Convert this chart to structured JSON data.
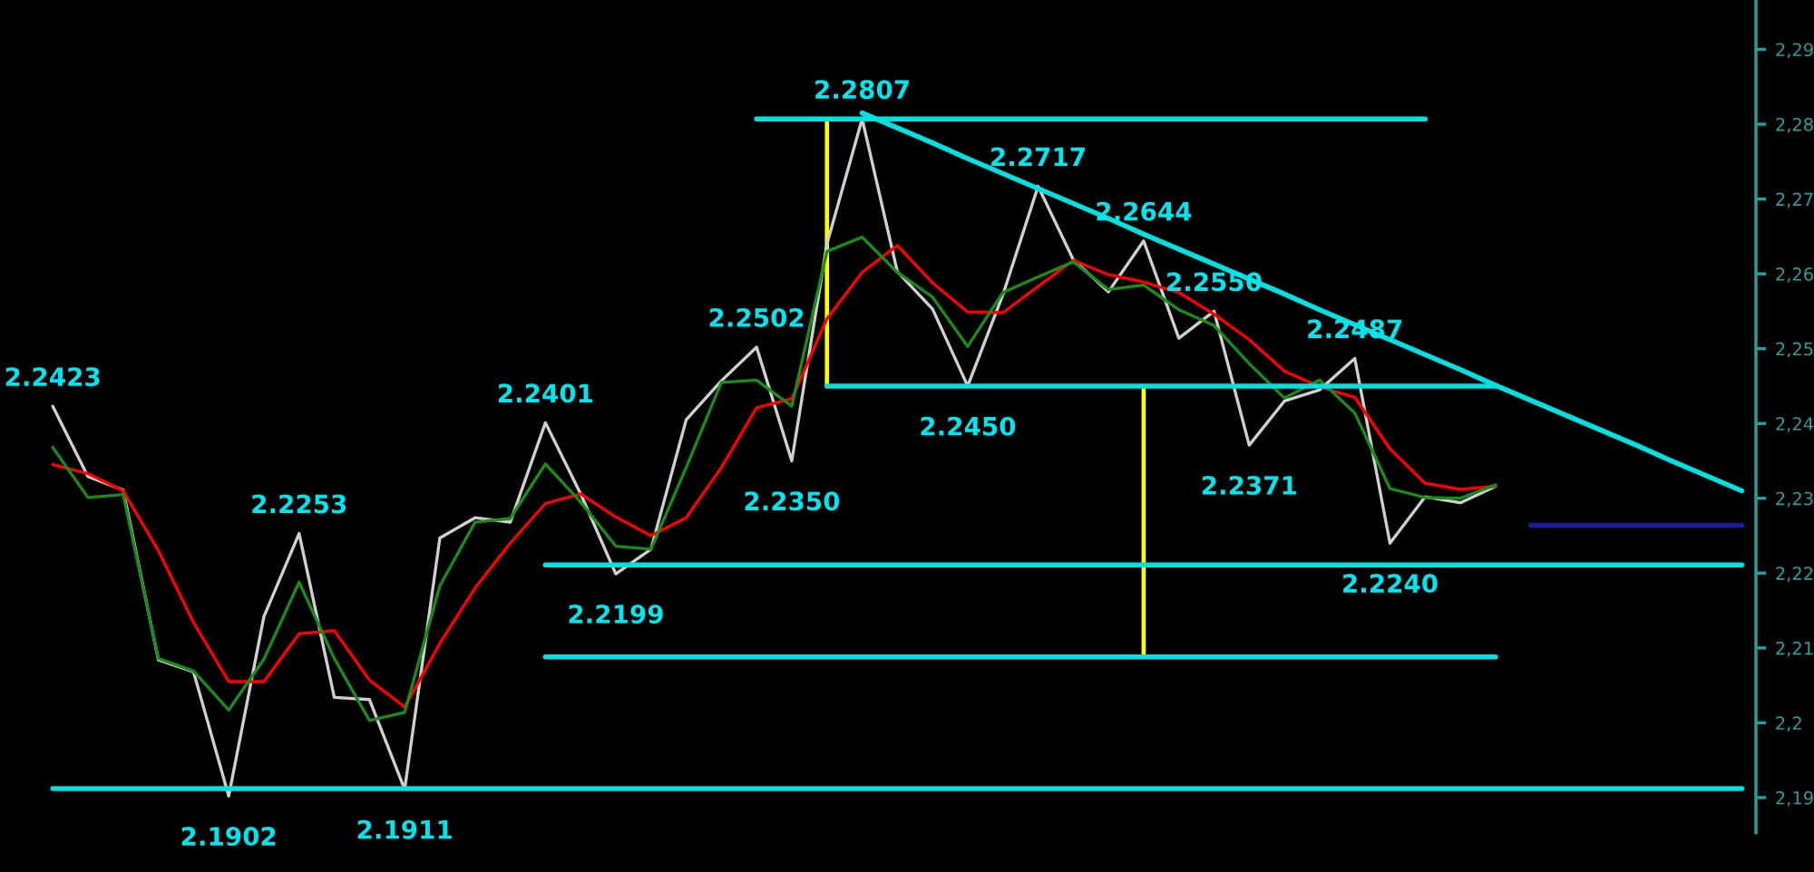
{
  "chart_data": {
    "type": "line",
    "ylim": [
      2.1853,
      2.2966
    ],
    "tick_labels": "y",
    "categories": [
      null,
      null,
      null,
      null,
      null,
      null,
      null,
      null,
      null,
      null,
      null,
      null,
      null,
      null,
      null,
      null,
      null,
      null,
      null,
      null,
      null,
      null,
      null,
      null,
      null,
      null,
      null,
      null,
      null,
      null,
      null,
      null,
      null,
      null,
      null,
      null,
      null,
      null,
      null,
      null,
      null,
      null,
      null,
      null,
      null,
      null,
      null,
      null,
      null
    ],
    "yticks": [
      {
        "value": 2.19,
        "label": "2,19"
      },
      {
        "value": 2.2,
        "label": "2,2"
      },
      {
        "value": 2.21,
        "label": "2,21"
      },
      {
        "value": 2.22,
        "label": "2,22"
      },
      {
        "value": 2.23,
        "label": "2,23"
      },
      {
        "value": 2.24,
        "label": "2,24"
      },
      {
        "value": 2.25,
        "label": "2,25"
      },
      {
        "value": 2.26,
        "label": "2,26"
      },
      {
        "value": 2.27,
        "label": "2,27"
      },
      {
        "value": 2.28,
        "label": "2,28"
      },
      {
        "value": 2.29,
        "label": "2,29"
      }
    ],
    "series": [
      {
        "color": "#d0d0d0",
        "values": [
          2.2423,
          2.2329,
          2.2311,
          2.2084,
          2.2068,
          2.1902,
          2.2142,
          2.2253,
          2.2034,
          2.2031,
          2.1911,
          2.2247,
          2.2274,
          2.2268,
          2.2401,
          2.2306,
          2.2199,
          2.2232,
          2.2405,
          2.2457,
          2.2502,
          2.235,
          2.264,
          2.2807,
          2.2603,
          2.2553,
          2.245,
          2.2572,
          2.2717,
          2.2619,
          2.2576,
          2.2644,
          2.2514,
          2.255,
          2.2371,
          2.243,
          2.2445,
          2.2487,
          2.224,
          2.2302,
          2.2294,
          2.2316,
          null,
          null,
          null,
          null,
          null,
          null,
          null
        ],
        "value_labels": [
          "2.2423",
          null,
          null,
          null,
          null,
          "2.1902",
          null,
          "2.2253",
          null,
          null,
          "2.1911",
          null,
          null,
          null,
          "2.2401",
          null,
          "2.2199",
          null,
          null,
          null,
          "2.2502",
          "2.2350",
          null,
          "2.2807",
          null,
          null,
          "2.2450",
          null,
          "2.2717",
          null,
          null,
          "2.2644",
          null,
          "2.2550",
          "2.2371",
          null,
          null,
          "2.2487",
          "2.2240",
          null,
          null,
          null,
          null,
          null,
          null,
          null,
          null,
          null,
          null
        ]
      },
      {
        "color": "#ff0000",
        "values": [
          2.2345,
          2.2333,
          2.231,
          2.223,
          2.2134,
          2.2055,
          2.2055,
          2.2119,
          2.2123,
          2.2057,
          2.2021,
          2.2106,
          2.218,
          2.224,
          2.2293,
          2.2306,
          2.2275,
          2.225,
          2.2274,
          2.2341,
          2.2421,
          2.2433,
          2.254,
          2.2602,
          2.2638,
          2.2588,
          2.2549,
          2.2548,
          2.2583,
          2.2618,
          2.2599,
          2.2589,
          2.2575,
          2.2546,
          2.2512,
          2.247,
          2.2449,
          2.2435,
          2.2366,
          2.232,
          2.2312,
          2.2316,
          null,
          null,
          null,
          null,
          null,
          null,
          null
        ]
      },
      {
        "color": "#1a8c1a",
        "values": [
          2.2368,
          2.2301,
          2.2305,
          2.2086,
          2.2069,
          2.2017,
          2.2085,
          2.2188,
          2.2086,
          2.2003,
          2.2014,
          2.2183,
          2.2268,
          2.2273,
          2.2346,
          2.2295,
          2.2236,
          2.2232,
          2.2341,
          2.2455,
          2.2458,
          2.2423,
          2.263,
          2.2649,
          2.2602,
          2.2569,
          2.2503,
          2.2575,
          2.2596,
          2.2616,
          2.2579,
          2.2585,
          2.2552,
          2.2531,
          2.248,
          2.2434,
          2.2458,
          2.2414,
          2.2313,
          2.2301,
          2.23,
          2.2318,
          null,
          null,
          null,
          null,
          null,
          null,
          null
        ]
      },
      {
        "color": "#00e0e0",
        "values": [
          null,
          null,
          null,
          null,
          null,
          null,
          null,
          null,
          null,
          null,
          null,
          null,
          null,
          null,
          null,
          null,
          null,
          null,
          null,
          null,
          2.2807,
          2.2807,
          2.2807,
          2.2807,
          2.2807,
          2.2807,
          2.2807,
          2.2807,
          2.2807,
          2.2807,
          2.2807,
          2.2807,
          2.2807,
          2.2807,
          2.2807,
          2.2807,
          2.2807,
          2.2807,
          2.2807,
          2.2807,
          null,
          null,
          null,
          null,
          null,
          null,
          null,
          null,
          null
        ]
      },
      {
        "color": "#00e0e0",
        "values": [
          null,
          null,
          null,
          null,
          null,
          null,
          null,
          null,
          null,
          null,
          null,
          null,
          null,
          null,
          null,
          null,
          null,
          null,
          null,
          null,
          null,
          null,
          2.245,
          2.245,
          2.245,
          2.245,
          2.245,
          2.245,
          2.245,
          2.245,
          2.245,
          2.245,
          2.245,
          2.245,
          2.245,
          2.245,
          2.245,
          2.245,
          2.245,
          2.245,
          2.245,
          2.245,
          null,
          null,
          null,
          null,
          null,
          null,
          null
        ]
      },
      {
        "color": "#00e0e0",
        "values": [
          null,
          null,
          null,
          null,
          null,
          null,
          null,
          null,
          null,
          null,
          null,
          null,
          null,
          null,
          2.2211,
          2.2211,
          2.2211,
          2.2211,
          2.2211,
          2.2211,
          2.2211,
          2.2211,
          2.2211,
          2.2211,
          2.2211,
          2.2211,
          2.2211,
          2.2211,
          2.2211,
          2.2211,
          2.2211,
          2.2211,
          2.2211,
          2.2211,
          2.2211,
          2.2211,
          2.2211,
          2.2211,
          2.2211,
          2.2211,
          2.2211,
          2.2211,
          2.2211,
          2.2211,
          2.2211,
          2.2211,
          2.2211,
          2.2211,
          2.2211
        ]
      },
      {
        "color": "#00e0e0",
        "values": [
          null,
          null,
          null,
          null,
          null,
          null,
          null,
          null,
          null,
          null,
          null,
          null,
          null,
          null,
          2.2088,
          2.2088,
          2.2088,
          2.2088,
          2.2088,
          2.2088,
          2.2088,
          2.2088,
          2.2088,
          2.2088,
          2.2088,
          2.2088,
          2.2088,
          2.2088,
          2.2088,
          2.2088,
          2.2088,
          2.2088,
          2.2088,
          2.2088,
          2.2088,
          2.2088,
          2.2088,
          2.2088,
          2.2088,
          2.2088,
          2.2088,
          2.2088,
          null,
          null,
          null,
          null,
          null,
          null,
          null
        ]
      },
      {
        "color": "#00e0e0",
        "values": [
          2.1912,
          2.1912,
          2.1912,
          2.1912,
          2.1912,
          2.1912,
          2.1912,
          2.1912,
          2.1912,
          2.1912,
          2.1912,
          2.1912,
          2.1912,
          2.1912,
          2.1912,
          2.1912,
          2.1912,
          2.1912,
          2.1912,
          2.1912,
          2.1912,
          2.1912,
          2.1912,
          2.1912,
          2.1912,
          2.1912,
          2.1912,
          2.1912,
          2.1912,
          2.1912,
          2.1912,
          2.1912,
          2.1912,
          2.1912,
          2.1912,
          2.1912,
          2.1912,
          2.1912,
          2.1912,
          2.1912,
          2.1912,
          2.1912,
          2.1912,
          2.1912,
          2.1912,
          2.1912,
          2.1912,
          2.1912,
          2.1912
        ]
      },
      {
        "color": "#00e0e0",
        "values": [
          null,
          null,
          null,
          null,
          null,
          null,
          null,
          null,
          null,
          null,
          null,
          null,
          null,
          null,
          null,
          null,
          null,
          null,
          null,
          null,
          null,
          null,
          null,
          2.2815,
          2.2795,
          2.2775,
          2.2754,
          2.2734,
          2.2714,
          2.2694,
          2.2674,
          2.2653,
          2.2633,
          2.2613,
          2.2593,
          2.2573,
          2.2552,
          2.2532,
          2.2512,
          2.2492,
          2.2472,
          2.2451,
          2.2431,
          2.2411,
          2.2391,
          2.2371,
          2.235,
          2.233,
          2.231
        ]
      },
      {
        "color": "#1a1a9c",
        "values": [
          null,
          null,
          null,
          null,
          null,
          null,
          null,
          null,
          null,
          null,
          null,
          null,
          null,
          null,
          null,
          null,
          null,
          null,
          null,
          null,
          null,
          null,
          null,
          null,
          null,
          null,
          null,
          null,
          null,
          null,
          null,
          null,
          null,
          null,
          null,
          null,
          null,
          null,
          null,
          null,
          null,
          null,
          2.2264,
          2.2264,
          2.2264,
          2.2264,
          2.2264,
          2.2264,
          2.2264
        ]
      },
      {
        "type": "bar",
        "color": "#ffff00",
        "values": [
          null,
          null,
          null,
          null,
          null,
          null,
          null,
          null,
          null,
          null,
          null,
          null,
          null,
          null,
          null,
          null,
          null,
          null,
          null,
          null,
          null,
          null,
          0.0357,
          null,
          null,
          null,
          null,
          null,
          null,
          null,
          null,
          0.0362,
          null,
          null,
          null,
          null,
          null,
          null,
          null,
          null,
          null,
          null,
          null,
          null,
          null,
          null,
          null,
          null,
          null
        ],
        "base": [
          null,
          null,
          null,
          null,
          null,
          null,
          null,
          null,
          null,
          null,
          null,
          null,
          null,
          null,
          null,
          null,
          null,
          null,
          null,
          null,
          null,
          null,
          2.245,
          null,
          null,
          null,
          null,
          null,
          null,
          null,
          null,
          2.2088,
          null,
          null,
          null,
          null,
          null,
          null,
          null,
          null,
          null,
          null,
          null,
          null,
          null,
          null,
          null,
          null,
          null
        ]
      }
    ]
  }
}
